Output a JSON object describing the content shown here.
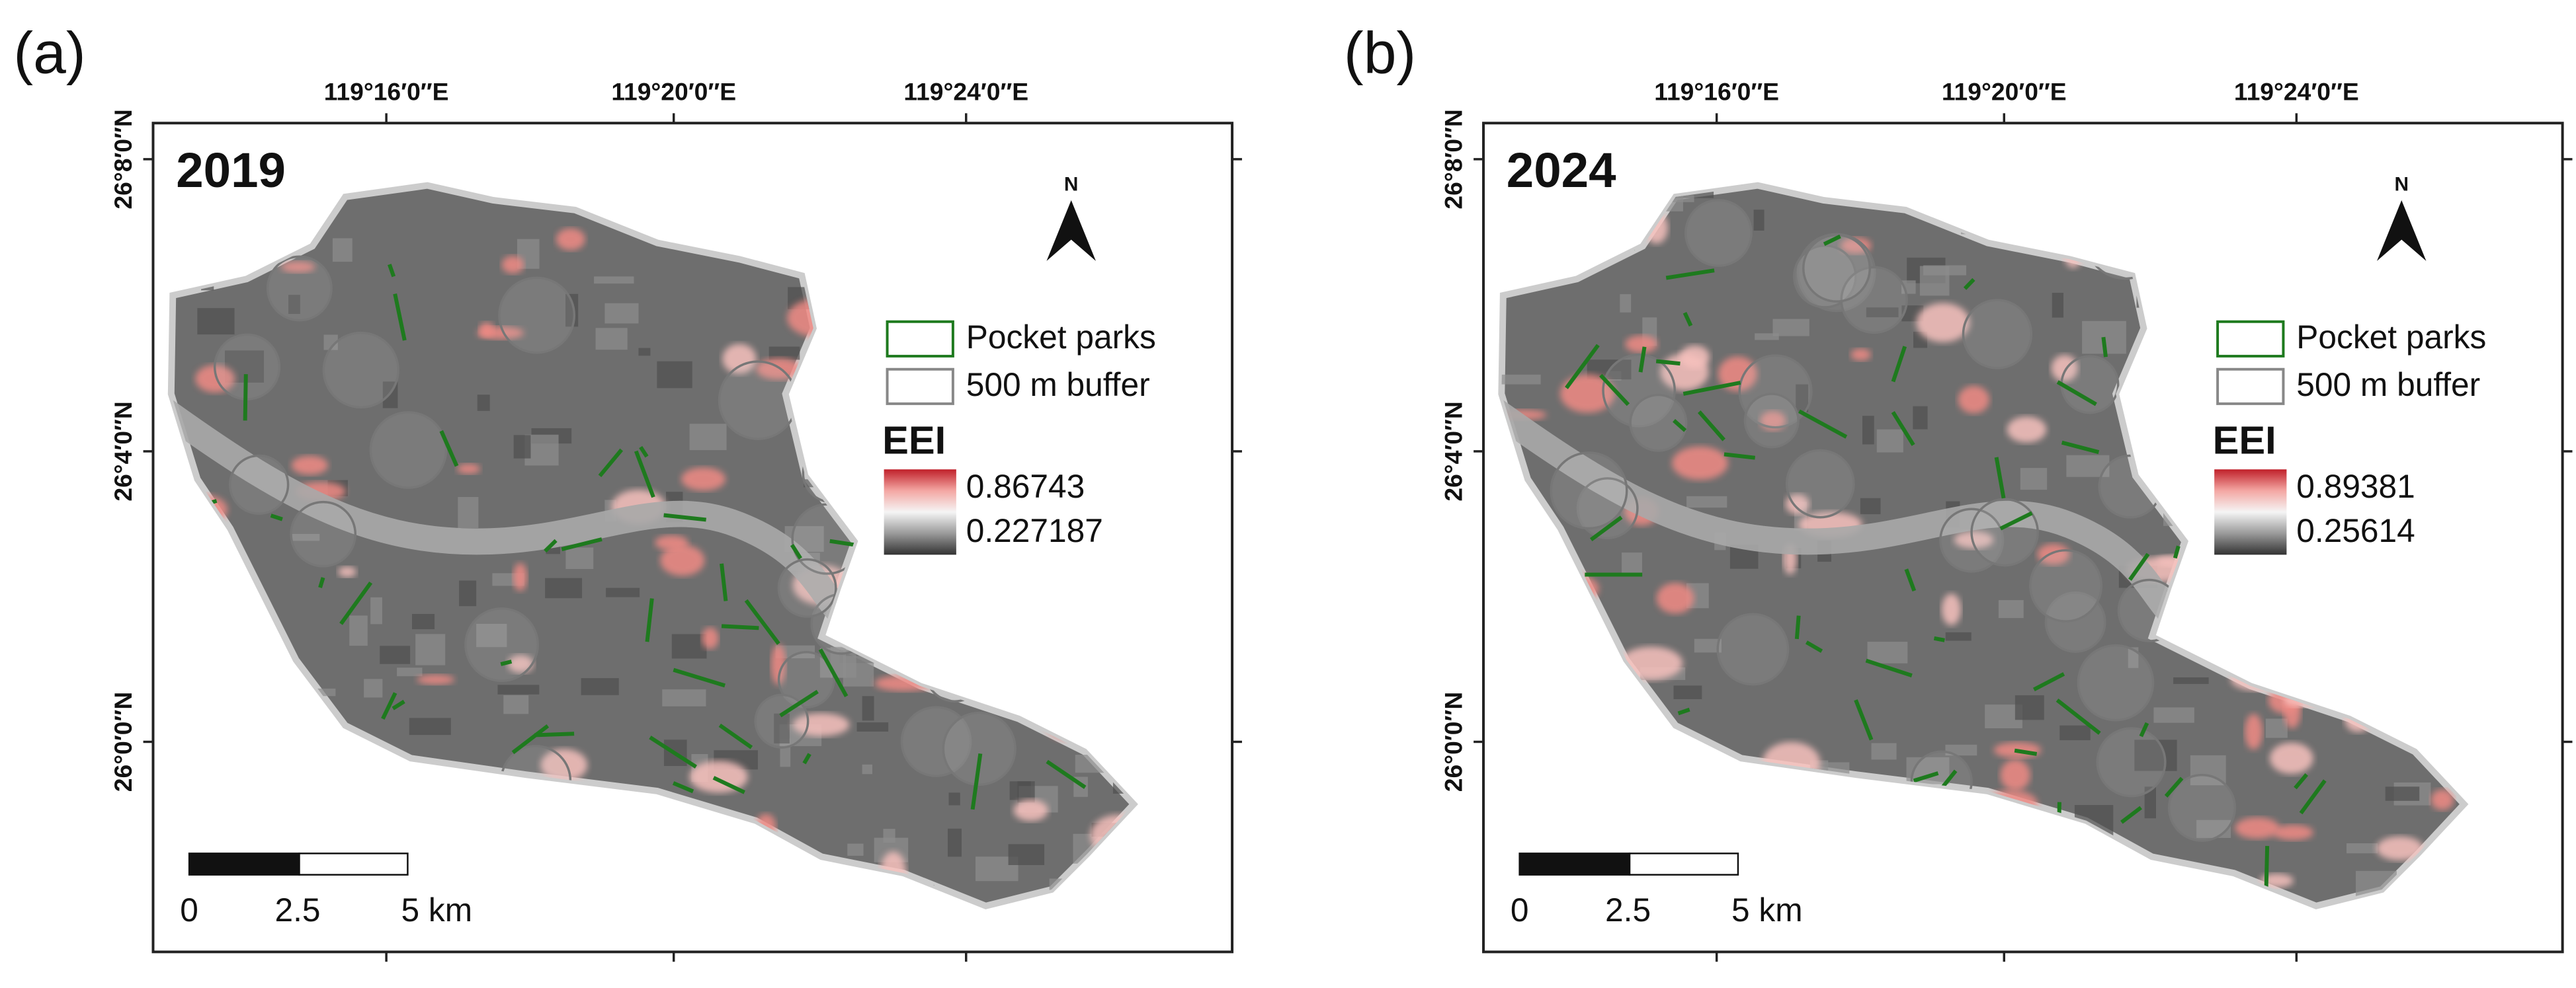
{
  "panels": [
    {
      "label": "(a)",
      "year": "2019",
      "lon_ticks": [
        "119°16′0″E",
        "119°20′0″E",
        "119°24′0″E"
      ],
      "lat_ticks": [
        "26°8′0″N",
        "26°4′0″N",
        "26°0′0″N"
      ],
      "north": "N",
      "legend": [
        "Pocket parks",
        "500 m buffer"
      ],
      "eei_title": "EEI",
      "eei_max": "0.86743",
      "eei_min": "0.227187",
      "scale_labels": [
        "0",
        "2.5",
        "5 km"
      ]
    },
    {
      "label": "(b)",
      "year": "2024",
      "lon_ticks": [
        "119°16′0″E",
        "119°20′0″E",
        "119°24′0″E"
      ],
      "lat_ticks": [
        "26°8′0″N",
        "26°4′0″N",
        "26°0′0″N"
      ],
      "north": "N",
      "legend": [
        "Pocket parks",
        "500 m buffer"
      ],
      "eei_title": "EEI",
      "eei_max": "0.89381",
      "eei_min": "0.25614",
      "scale_labels": [
        "0",
        "2.5",
        "5 km"
      ]
    }
  ]
}
